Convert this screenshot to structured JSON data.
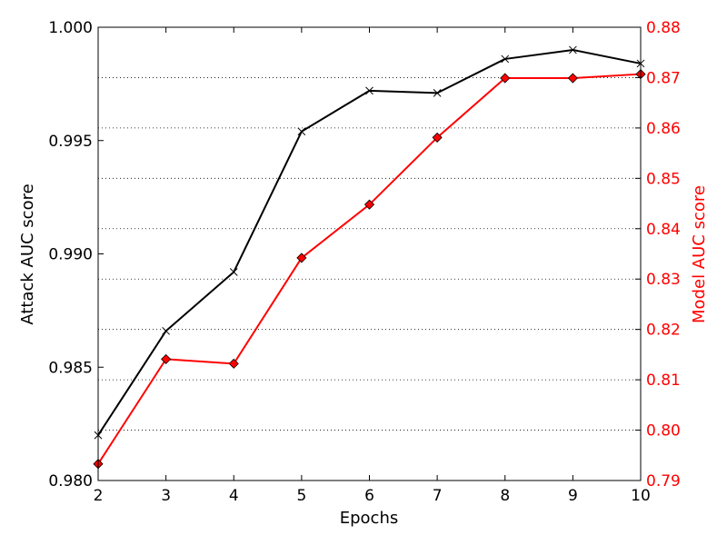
{
  "chart_data": {
    "type": "line",
    "title": "",
    "x": [
      2,
      3,
      4,
      5,
      6,
      7,
      8,
      9,
      10
    ],
    "xlabel": "Epochs",
    "xlim": [
      2,
      10
    ],
    "xticks": [
      "2",
      "3",
      "4",
      "5",
      "6",
      "7",
      "8",
      "9",
      "10"
    ],
    "grid": "dotted horizontal lines at right-axis ticks",
    "legend": "none",
    "left_axis": {
      "label": "Attack AUC score",
      "ylim": [
        0.98,
        1.0
      ],
      "ticks": [
        0.98,
        0.985,
        0.99,
        0.995,
        1.0
      ],
      "tick_labels": [
        "0.980",
        "0.985",
        "0.990",
        "0.995",
        "1.000"
      ],
      "color": "#000000"
    },
    "right_axis": {
      "label": "Model AUC score",
      "ylim": [
        0.79,
        0.88
      ],
      "ticks": [
        0.79,
        0.8,
        0.81,
        0.82,
        0.83,
        0.84,
        0.85,
        0.86,
        0.87,
        0.88
      ],
      "tick_labels": [
        "0.79",
        "0.80",
        "0.81",
        "0.82",
        "0.83",
        "0.84",
        "0.85",
        "0.86",
        "0.87",
        "0.88"
      ],
      "color": "#ff0000"
    },
    "series": [
      {
        "axis": "left",
        "color": "#000000",
        "marker": "x",
        "values": [
          0.982,
          0.9866,
          0.9892,
          0.9954,
          0.9972,
          0.9971,
          0.9986,
          0.999,
          0.9984
        ]
      },
      {
        "axis": "right",
        "color": "#ff0000",
        "marker": "diamond",
        "values": [
          0.7933,
          0.8141,
          0.8132,
          0.8342,
          0.8448,
          0.8581,
          0.8699,
          0.8699,
          0.8707
        ]
      }
    ]
  }
}
